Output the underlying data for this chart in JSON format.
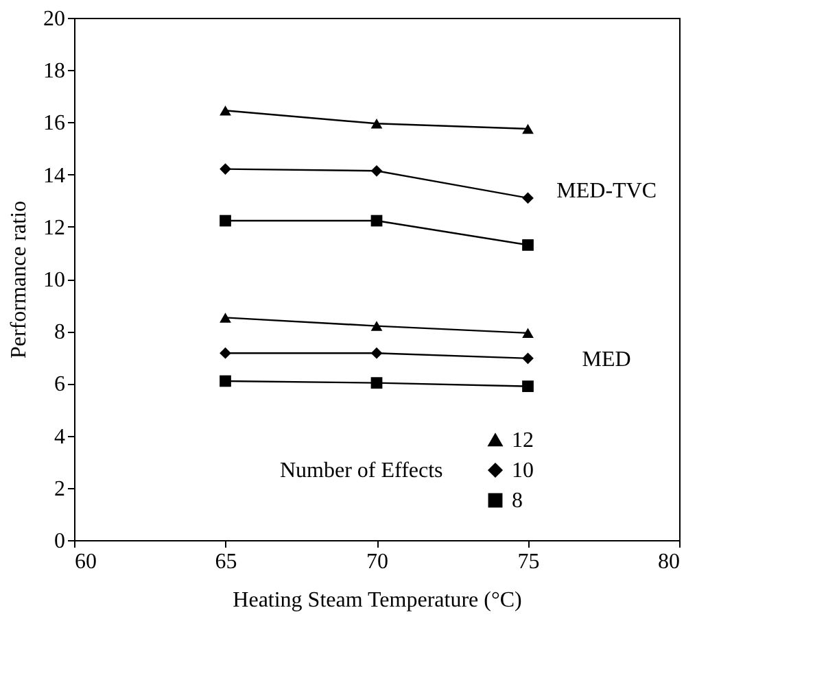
{
  "chart_data": {
    "type": "line",
    "xlabel": "Heating Steam Temperature (°C)",
    "ylabel": "Performance ratio",
    "x": [
      65,
      70,
      75
    ],
    "series": [
      {
        "name": "12",
        "color": "#000000",
        "marker": "triangle",
        "values": [
          16.45,
          15.95,
          15.75
        ]
      },
      {
        "name": "10",
        "color": "#000000",
        "marker": "diamond",
        "values": [
          14.21,
          14.14,
          13.1
        ]
      },
      {
        "name": "8",
        "color": "#000000",
        "marker": "square",
        "values": [
          12.23,
          12.23,
          11.3
        ]
      },
      {
        "color": "#000000",
        "marker": "triangle",
        "values": [
          8.52,
          8.2,
          7.93
        ]
      },
      {
        "color": "#000000",
        "marker": "diamond",
        "values": [
          7.16,
          7.16,
          6.96
        ]
      },
      {
        "color": "#000000",
        "marker": "square",
        "values": [
          6.09,
          6.02,
          5.89
        ]
      }
    ],
    "legend_title": "Number of Effects",
    "legend": "bottom",
    "annotations": [
      "MED-TVC",
      "MED"
    ],
    "xlim": [
      60,
      80
    ],
    "xticks": [
      60,
      65,
      70,
      75,
      80
    ],
    "ylim": [
      0,
      20
    ],
    "yticks": [
      0,
      2,
      4,
      6,
      8,
      10,
      12,
      14,
      16,
      18,
      20
    ],
    "grid": false,
    "line_style": "solid"
  }
}
